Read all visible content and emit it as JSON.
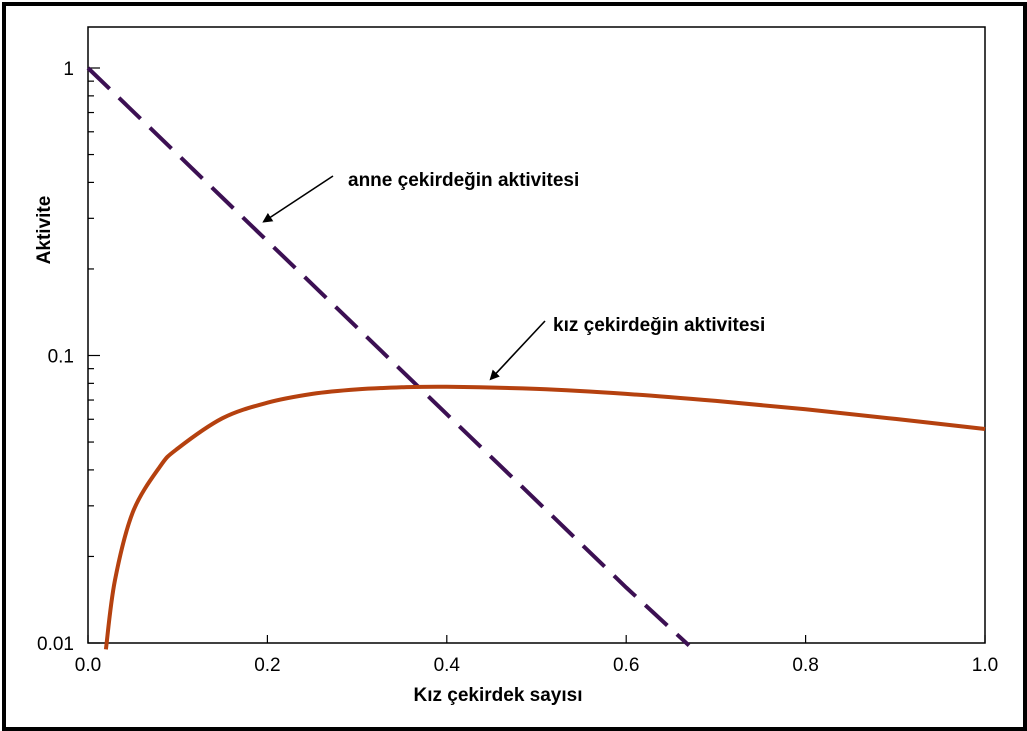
{
  "chart_data": {
    "type": "line",
    "xlabel": "Kız çekirdek sayısı",
    "ylabel": "Aktivite",
    "xlim": [
      0.0,
      1.0
    ],
    "ylim": [
      0.01,
      1
    ],
    "yscale": "log",
    "grid": false,
    "x_ticks": [
      "0.0",
      "0.2",
      "0.4",
      "0.6",
      "0.8",
      "1.0"
    ],
    "y_ticks": [
      "0.01",
      "0.1",
      "1"
    ],
    "series": [
      {
        "key": "mother",
        "style": "dashed",
        "color": "#3c1053",
        "x": [
          0.0,
          0.1,
          0.2,
          0.3,
          0.4,
          0.5,
          0.6,
          0.67
        ],
        "y": [
          1.0,
          0.5,
          0.25,
          0.125,
          0.0625,
          0.03125,
          0.0156,
          0.0098
        ]
      },
      {
        "key": "daughter",
        "style": "solid",
        "color": "#b5410f",
        "x": [
          0.02,
          0.03,
          0.05,
          0.08,
          0.1,
          0.15,
          0.2,
          0.25,
          0.3,
          0.35,
          0.4,
          0.5,
          0.6,
          0.7,
          0.8,
          0.9,
          1.0
        ],
        "y": [
          0.0095,
          0.0165,
          0.0285,
          0.041,
          0.0475,
          0.0605,
          0.0685,
          0.0735,
          0.0762,
          0.0775,
          0.0778,
          0.0765,
          0.0735,
          0.0695,
          0.065,
          0.0602,
          0.0555
        ]
      }
    ],
    "annotations": [
      {
        "text": "anne çekirdeğin aktivitesi",
        "target_series": "mother",
        "target_x": 0.185
      },
      {
        "text": "kız çekirdeğin aktivitesi",
        "target_series": "daughter",
        "target_x": 0.44
      }
    ]
  }
}
